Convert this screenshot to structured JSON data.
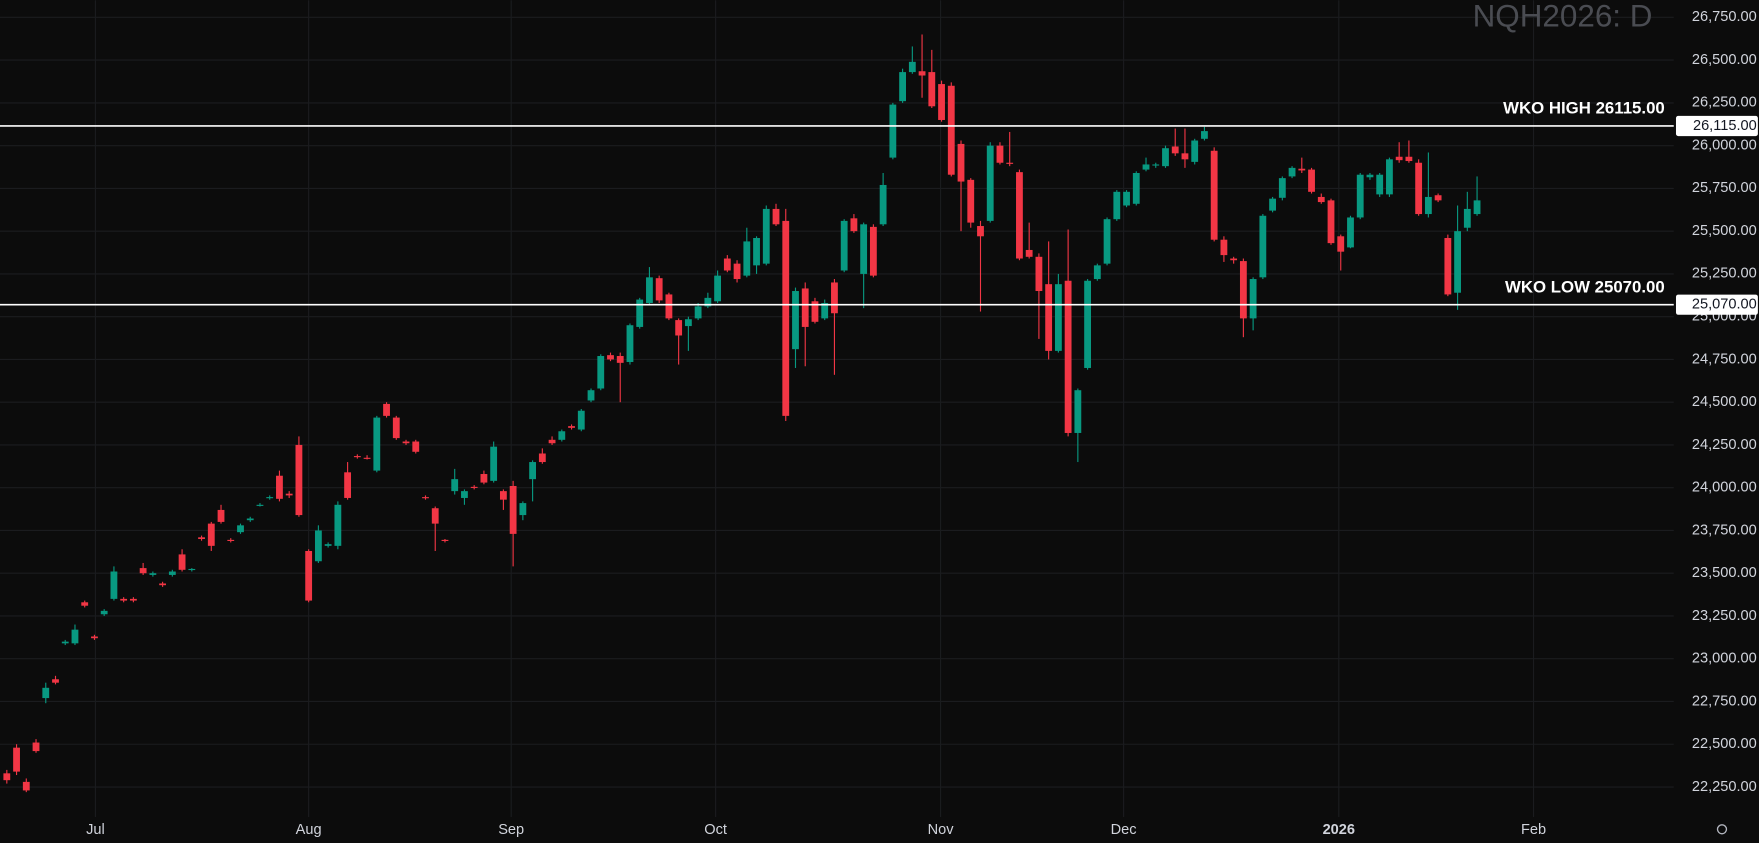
{
  "chart_data": {
    "type": "candlestick",
    "title": "NQH2026: D",
    "up_color": "#089981",
    "down_color": "#f23645",
    "grid": true,
    "xlim": [
      -0.7,
      171.2
    ],
    "xticks": [
      {
        "value": 9.1,
        "label": "Jul"
      },
      {
        "value": 31.0,
        "label": "Aug"
      },
      {
        "value": 51.8,
        "label": "Sep"
      },
      {
        "value": 72.8,
        "label": "Oct"
      },
      {
        "value": 95.9,
        "label": "Nov"
      },
      {
        "value": 114.7,
        "label": "Dec"
      },
      {
        "value": 136.8,
        "label": "2026"
      },
      {
        "value": 156.8,
        "label": "Feb"
      }
    ],
    "ylim": [
      22075,
      26850
    ],
    "yticks": [
      {
        "value": 22250,
        "label": "22,250.00"
      },
      {
        "value": 22500,
        "label": "22,500.00"
      },
      {
        "value": 22750,
        "label": "22,750.00"
      },
      {
        "value": 23000,
        "label": "23,000.00"
      },
      {
        "value": 23250,
        "label": "23,250.00"
      },
      {
        "value": 23500,
        "label": "23,500.00"
      },
      {
        "value": 23750,
        "label": "23,750.00"
      },
      {
        "value": 24000,
        "label": "24,000.00"
      },
      {
        "value": 24250,
        "label": "24,250.00"
      },
      {
        "value": 24500,
        "label": "24,500.00"
      },
      {
        "value": 24750,
        "label": "24,750.00"
      },
      {
        "value": 25000,
        "label": "25,000.00"
      },
      {
        "value": 25250,
        "label": "25,250.00"
      },
      {
        "value": 25500,
        "label": "25,500.00"
      },
      {
        "value": 25750,
        "label": "25,750.00"
      },
      {
        "value": 26000,
        "label": "26,000.00"
      },
      {
        "value": 26250,
        "label": "26,250.00"
      },
      {
        "value": 26500,
        "label": "26,500.00"
      },
      {
        "value": 26750,
        "label": "26,750.00"
      }
    ],
    "hlines": [
      {
        "value": 26115,
        "label": "WKO HIGH 26115.00",
        "axis_label": "26,115.00",
        "color": "#ffffff"
      },
      {
        "value": 25070,
        "label": "WKO LOW 25070.00",
        "axis_label": "25,070.00",
        "color": "#ffffff"
      }
    ],
    "open": [
      22330,
      22480,
      22280,
      22510,
      22770,
      22880,
      23090,
      23090,
      23330,
      23130,
      23260,
      23350,
      23350,
      23350,
      23530,
      23490,
      23440,
      23490,
      23610,
      23520,
      23710,
      23790,
      23870,
      23695,
      23740,
      23810,
      23895,
      23940,
      24070,
      23965,
      24250,
      23630,
      23570,
      23660,
      23660,
      24090,
      24185,
      24175,
      24100,
      24490,
      24410,
      24270,
      24270,
      23945,
      23880,
      23695,
      23980,
      23940,
      24005,
      24080,
      24040,
      23980,
      24010,
      23840,
      24050,
      24200,
      24280,
      24280,
      24360,
      24340,
      24510,
      24580,
      24775,
      24770,
      24735,
      24940,
      25080,
      25225,
      25130,
      24980,
      24945,
      24990,
      25060,
      25090,
      25340,
      25310,
      25240,
      25300,
      25310,
      25630,
      25560,
      24810,
      25165,
      25090,
      24990,
      25200,
      25270,
      25575,
      25250,
      25525,
      25540,
      25930,
      26260,
      26430,
      26435,
      26430,
      26360,
      26350,
      26010,
      25800,
      25530,
      25560,
      26000,
      25900,
      25845,
      25390,
      25350,
      25190,
      24800,
      25210,
      24320,
      24700,
      25220,
      25310,
      25570,
      25650,
      25660,
      25860,
      25885,
      25880,
      25995,
      25955,
      25905,
      26040,
      25970,
      25450,
      25340,
      25325,
      24990,
      25230,
      25620,
      25695,
      25820,
      25865,
      25860,
      25700,
      25680,
      25470,
      25405,
      25580,
      25815,
      25715,
      25715,
      25935,
      25935,
      25900,
      25600,
      25710,
      25460,
      25140,
      25520,
      25600
    ],
    "high": [
      22350,
      22500,
      22300,
      22530,
      22860,
      22900,
      23110,
      23200,
      23340,
      23140,
      23290,
      23540,
      23360,
      23360,
      23560,
      23510,
      23450,
      23520,
      23640,
      23530,
      23720,
      23800,
      23900,
      23705,
      23790,
      23830,
      23910,
      23955,
      24100,
      23980,
      24300,
      23640,
      23780,
      23680,
      23920,
      24150,
      24195,
      24190,
      24420,
      24500,
      24420,
      24280,
      24280,
      23955,
      23890,
      23700,
      24110,
      23990,
      24015,
      24100,
      24270,
      23990,
      24040,
      23920,
      24160,
      24230,
      24300,
      24340,
      24370,
      24460,
      24580,
      24780,
      24790,
      24790,
      24960,
      25110,
      25290,
      25240,
      25140,
      24990,
      25000,
      25080,
      25140,
      25270,
      25360,
      25330,
      25520,
      25470,
      25650,
      25660,
      25630,
      25170,
      25200,
      25110,
      25100,
      25220,
      25570,
      25600,
      25550,
      25540,
      25840,
      26250,
      26450,
      26580,
      26650,
      26560,
      26380,
      26370,
      26030,
      25810,
      25560,
      26020,
      26020,
      26080,
      25860,
      25550,
      25370,
      25440,
      25250,
      25510,
      24580,
      25220,
      25310,
      25580,
      25740,
      25740,
      25850,
      25930,
      25900,
      26000,
      26100,
      26100,
      26040,
      26110,
      25990,
      25470,
      25350,
      25340,
      25230,
      25600,
      25700,
      25820,
      25880,
      25930,
      25870,
      25720,
      25690,
      25480,
      25590,
      25840,
      25840,
      25840,
      25930,
      26020,
      26030,
      25920,
      25960,
      25720,
      25480,
      25650,
      25730,
      25820
    ],
    "low": [
      22270,
      22320,
      22220,
      22450,
      22740,
      22850,
      23080,
      23080,
      23300,
      23110,
      23250,
      23340,
      23330,
      23330,
      23490,
      23480,
      23420,
      23480,
      23510,
      23510,
      23690,
      23630,
      23790,
      23680,
      23730,
      23800,
      23890,
      23930,
      23920,
      23940,
      23830,
      23330,
      23560,
      23650,
      23640,
      23930,
      24170,
      24165,
      24090,
      24410,
      24280,
      24250,
      24200,
      23930,
      23630,
      23680,
      23960,
      23900,
      23990,
      24020,
      24030,
      23870,
      23540,
      23810,
      23920,
      24140,
      24250,
      24270,
      24340,
      24330,
      24500,
      24570,
      24740,
      24500,
      24720,
      24930,
      25070,
      25080,
      24980,
      24720,
      24800,
      24980,
      25050,
      25080,
      25260,
      25200,
      25230,
      25250,
      25300,
      25530,
      24390,
      24700,
      24710,
      24960,
      24980,
      24660,
      25260,
      25490,
      25050,
      25230,
      25530,
      25920,
      26250,
      26420,
      26280,
      26220,
      26140,
      25820,
      25500,
      25520,
      25030,
      25550,
      25890,
      25880,
      25330,
      25340,
      24870,
      24750,
      24790,
      24300,
      24150,
      24690,
      25210,
      25300,
      25560,
      25640,
      25650,
      25850,
      25870,
      25870,
      25940,
      25870,
      25890,
      26030,
      25440,
      25320,
      25310,
      24880,
      24920,
      25220,
      25610,
      25680,
      25810,
      25840,
      25720,
      25660,
      25420,
      25270,
      25400,
      25570,
      25800,
      25700,
      25700,
      25900,
      25900,
      25590,
      25580,
      25670,
      25120,
      25040,
      25500,
      25590
    ],
    "close": [
      22290,
      22340,
      22230,
      22460,
      22830,
      22860,
      23100,
      23170,
      23310,
      23120,
      23280,
      23510,
      23340,
      23340,
      23500,
      23500,
      23430,
      23510,
      23520,
      23525,
      23700,
      23660,
      23800,
      23690,
      23780,
      23820,
      23900,
      23945,
      23935,
      23955,
      23840,
      23340,
      23750,
      23670,
      23900,
      23940,
      24180,
      24170,
      24410,
      24420,
      24290,
      24260,
      24210,
      23940,
      23790,
      23690,
      24050,
      23980,
      24000,
      24030,
      24240,
      23930,
      23730,
      23910,
      24150,
      24150,
      24260,
      24330,
      24350,
      24450,
      24570,
      24770,
      24750,
      24730,
      24950,
      25100,
      25230,
      25095,
      24990,
      24890,
      24985,
      25060,
      25110,
      25240,
      25270,
      25220,
      25440,
      25460,
      25630,
      25540,
      24420,
      25150,
      24940,
      24970,
      25080,
      25020,
      25560,
      25500,
      25540,
      25240,
      25770,
      26240,
      26430,
      26490,
      26410,
      26230,
      26150,
      25830,
      25790,
      25550,
      25470,
      26000,
      25900,
      25895,
      25340,
      25350,
      25150,
      24800,
      25190,
      24320,
      24570,
      25210,
      25300,
      25570,
      25730,
      25730,
      25840,
      25890,
      25890,
      25985,
      25955,
      25920,
      26030,
      26085,
      25450,
      25360,
      25330,
      24990,
      25220,
      25590,
      25690,
      25810,
      25870,
      25855,
      25730,
      25670,
      25430,
      25380,
      25580,
      25830,
      25830,
      25830,
      25920,
      25915,
      25910,
      25600,
      25700,
      25680,
      25130,
      25500,
      25630,
      25680
    ]
  }
}
